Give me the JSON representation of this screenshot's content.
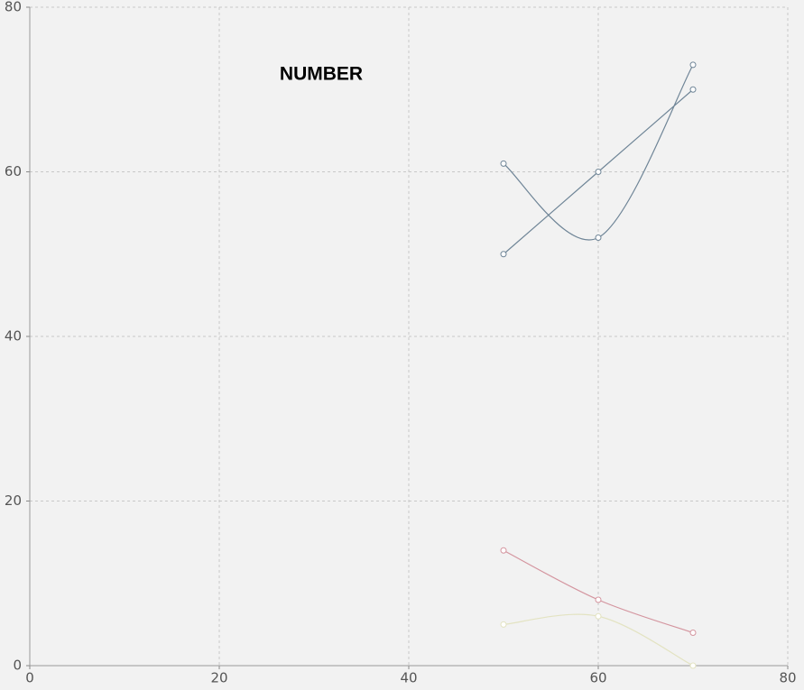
{
  "chart_data": {
    "type": "line",
    "title": "NUMBER",
    "xlim": [
      0,
      80
    ],
    "xticks": [
      0,
      20,
      40,
      60,
      80
    ],
    "ylim": [
      0,
      80
    ],
    "yticks": [
      0,
      20,
      40,
      60,
      80
    ],
    "grid": true,
    "curve": "smooth",
    "series": [
      {
        "color": "#6f8597",
        "x": [
          50,
          60,
          70
        ],
        "values": [
          50,
          60,
          70
        ]
      },
      {
        "color": "#6f8597",
        "x": [
          50,
          60,
          70
        ],
        "values": [
          61,
          52,
          73
        ]
      },
      {
        "color": "#d4959f",
        "x": [
          50,
          60,
          70
        ],
        "values": [
          14,
          8,
          4
        ]
      },
      {
        "color": "#e3e3c2",
        "x": [
          50,
          60,
          70
        ],
        "values": [
          5,
          6,
          0
        ]
      }
    ]
  }
}
